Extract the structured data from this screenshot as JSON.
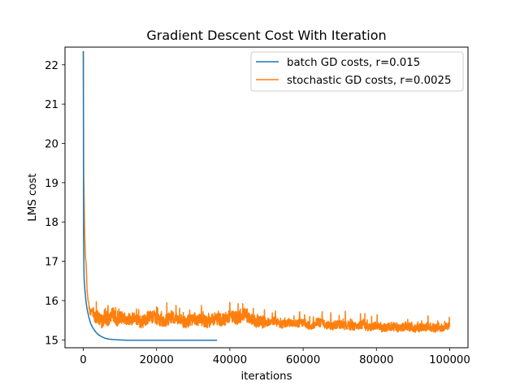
{
  "chart_data": {
    "type": "line",
    "title": "Gradient Descent Cost With Iteration",
    "xlabel": "iterations",
    "ylabel": "LMS cost",
    "xlim": [
      -5000,
      105000
    ],
    "ylim": [
      14.8,
      22.45
    ],
    "x_ticks": [
      0,
      20000,
      40000,
      60000,
      80000,
      100000
    ],
    "y_ticks": [
      15,
      16,
      17,
      18,
      19,
      20,
      21,
      22
    ],
    "grid": false,
    "legend_position": "top-right",
    "series": [
      {
        "name": "batch GD costs, r=0.015",
        "color": "#1f77b4",
        "x": [
          0,
          80,
          200,
          400,
          700,
          1000,
          1500,
          2000,
          2500,
          3000,
          3500,
          4000,
          5000,
          6000,
          7000,
          8000,
          10000,
          12000,
          15000,
          20000,
          25000,
          30000,
          36500
        ],
        "y": [
          22.35,
          17.5,
          16.6,
          16.3,
          16.0,
          15.8,
          15.58,
          15.42,
          15.32,
          15.25,
          15.19,
          15.14,
          15.08,
          15.04,
          15.02,
          15.01,
          15.0,
          14.99,
          14.99,
          14.99,
          14.99,
          14.99,
          14.99
        ]
      },
      {
        "name": "stochastic GD costs, r=0.0025",
        "color": "#ff7f0e",
        "x": [
          0,
          100,
          200,
          300,
          400,
          600,
          800,
          1000,
          1300,
          1600,
          2000,
          2500,
          3000,
          4000,
          5000,
          6000,
          7000,
          8000,
          9000,
          10000,
          12000,
          14000,
          16000,
          18000,
          20000,
          22000,
          24000,
          26000,
          28000,
          30000,
          32000,
          34000,
          36000,
          38000,
          40000,
          42000,
          44000,
          46000,
          48000,
          50000,
          52000,
          54000,
          56000,
          58000,
          60000,
          62000,
          64000,
          66000,
          68000,
          70000,
          72000,
          74000,
          76000,
          78000,
          80000,
          82000,
          84000,
          86000,
          88000,
          90000,
          92000,
          94000,
          96000,
          98000,
          100000
        ],
        "y": [
          22.35,
          19.2,
          18.7,
          18.1,
          17.6,
          17.1,
          16.9,
          16.3,
          16.0,
          15.9,
          15.7,
          15.75,
          15.55,
          15.6,
          15.45,
          15.55,
          15.5,
          15.7,
          15.45,
          15.6,
          15.5,
          15.55,
          15.45,
          15.6,
          15.55,
          15.45,
          15.6,
          15.5,
          15.45,
          15.55,
          15.5,
          15.45,
          15.55,
          15.5,
          15.6,
          15.55,
          15.65,
          15.5,
          15.45,
          15.45,
          15.5,
          15.4,
          15.45,
          15.4,
          15.45,
          15.35,
          15.45,
          15.4,
          15.35,
          15.4,
          15.35,
          15.35,
          15.4,
          15.3,
          15.35,
          15.3,
          15.35,
          15.3,
          15.35,
          15.3,
          15.3,
          15.35,
          15.3,
          15.3,
          15.35
        ]
      }
    ]
  }
}
